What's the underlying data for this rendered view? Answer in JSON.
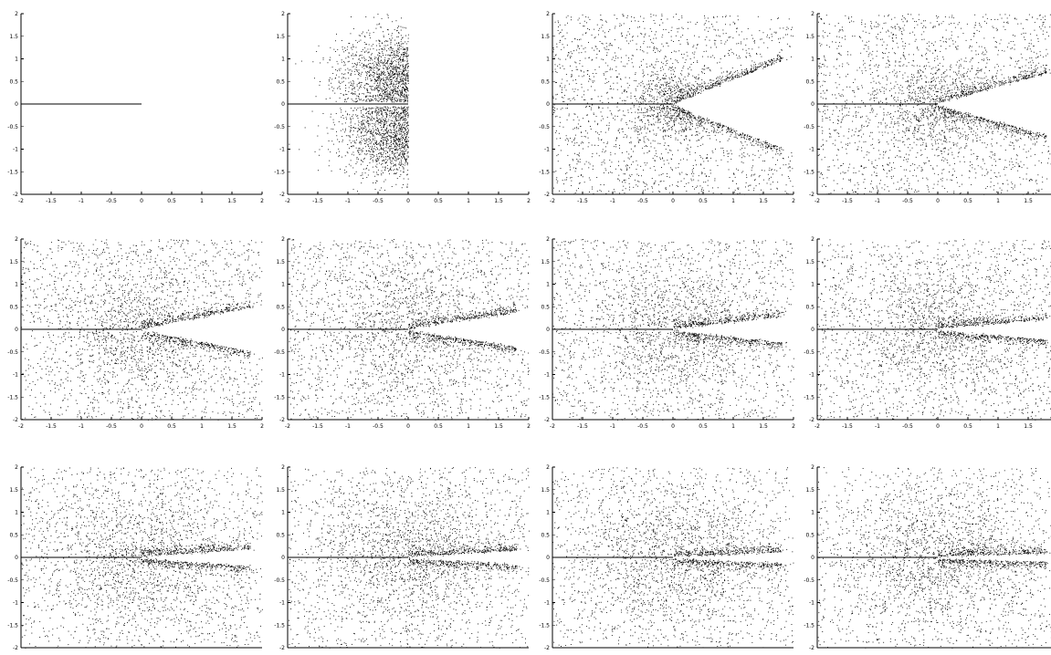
{
  "figure": {
    "grid_rows": 3,
    "grid_cols": 4,
    "point_color": "#000000",
    "background": "#ffffff"
  },
  "chart_data": [
    {
      "panel": 1,
      "type": "scatter",
      "pattern": "line",
      "spread": 0.0,
      "open_angle": 0,
      "center_density": 0.0,
      "xlim": [
        -2,
        2
      ],
      "ylim": [
        -2,
        2
      ],
      "xticks": [
        "-2",
        "-1.5",
        "-1",
        "-0.5",
        "0",
        "0.5",
        "1",
        "1.5",
        "2"
      ],
      "yticks": [
        "2",
        "1.5",
        "1",
        "0.5",
        "0",
        "-0.5",
        "-1",
        "-1.5",
        "-2"
      ]
    },
    {
      "panel": 2,
      "type": "scatter",
      "pattern": "split",
      "spread": 1.0,
      "open_angle": 0,
      "center_density": 0.3,
      "xlim": [
        -2,
        2
      ],
      "ylim": [
        -2,
        2
      ],
      "xticks": [
        "-2",
        "-1.5",
        "-1",
        "-0.5",
        "0",
        "0.5",
        "1",
        "1.5",
        "2"
      ],
      "yticks": [
        "2",
        "1.5",
        "1",
        "0.5",
        "0",
        "-0.5",
        "-1",
        "-1.5",
        "-2"
      ]
    },
    {
      "panel": 3,
      "type": "scatter",
      "pattern": "wedge",
      "spread": 0.7,
      "open_angle": 55,
      "center_density": 0.3,
      "xlim": [
        -2,
        2
      ],
      "ylim": [
        -2,
        2
      ],
      "xticks": [
        "-2",
        "-1.5",
        "-1",
        "-0.5",
        "0",
        "0.5",
        "1",
        "1.5",
        "2"
      ],
      "yticks": [
        "2",
        "1.5",
        "1",
        "0.5",
        "0",
        "-0.5",
        "-1",
        "-1.5",
        "-2"
      ]
    },
    {
      "panel": 4,
      "type": "scatter",
      "pattern": "wedge",
      "spread": 0.9,
      "open_angle": 40,
      "center_density": 0.3,
      "xlim": [
        -2,
        2
      ],
      "ylim": [
        -2,
        2
      ],
      "xticks": [
        "-2",
        "-1.5",
        "-1",
        "-0.5",
        "0",
        "0.5",
        "1",
        "1.5"
      ],
      "yticks": [
        "2",
        "1.5",
        "1",
        "0.5",
        "0",
        "-0.5",
        "-1",
        "-1.5",
        "-2"
      ]
    },
    {
      "panel": 5,
      "type": "scatter",
      "pattern": "wedge",
      "spread": 1.2,
      "open_angle": 28,
      "center_density": 0.35,
      "xlim": [
        -2,
        2
      ],
      "ylim": [
        -2,
        2
      ],
      "xticks": [
        "-2",
        "-1.5",
        "-1",
        "-0.5",
        "0",
        "0.5",
        "1",
        "1.5",
        "2"
      ],
      "yticks": [
        "2",
        "1.5",
        "1",
        "0.5",
        "0",
        "-0.5",
        "-1",
        "-1.5",
        "-2"
      ]
    },
    {
      "panel": 6,
      "type": "scatter",
      "pattern": "wedge",
      "spread": 1.3,
      "open_angle": 22,
      "center_density": 0.35,
      "xlim": [
        -2,
        2
      ],
      "ylim": [
        -2,
        2
      ],
      "xticks": [
        "-2",
        "-1.5",
        "-1",
        "-0.5",
        "0",
        "0.5",
        "1",
        "1.5",
        "2"
      ],
      "yticks": [
        "2",
        "1.5",
        "1",
        "0.5",
        "0",
        "-0.5",
        "-1",
        "-1.5",
        "-2"
      ]
    },
    {
      "panel": 7,
      "type": "scatter",
      "pattern": "wedge",
      "spread": 1.3,
      "open_angle": 16,
      "center_density": 0.4,
      "xlim": [
        -2,
        2
      ],
      "ylim": [
        -2,
        2
      ],
      "xticks": [
        "-2",
        "-1.5",
        "-1",
        "-0.5",
        "0",
        "0.5",
        "1",
        "1.5",
        "2"
      ],
      "yticks": [
        "2",
        "1.5",
        "1",
        "0.5",
        "0",
        "-0.5",
        "-1",
        "-1.5",
        "-2"
      ]
    },
    {
      "panel": 8,
      "type": "scatter",
      "pattern": "wedge",
      "spread": 1.4,
      "open_angle": 12,
      "center_density": 0.45,
      "xlim": [
        -2,
        2
      ],
      "ylim": [
        -2,
        2
      ],
      "xticks": [
        "-2",
        "-1.5",
        "-1",
        "-0.5",
        "0",
        "0.5",
        "1",
        "1.5"
      ],
      "yticks": [
        "2",
        "1.5",
        "1",
        "0.5",
        "0",
        "-0.5",
        "-1",
        "-1.5",
        "-2"
      ]
    },
    {
      "panel": 9,
      "type": "scatter",
      "pattern": "wedge",
      "spread": 1.5,
      "open_angle": 10,
      "center_density": 0.5,
      "xlim": [
        -2,
        2
      ],
      "ylim": [
        -2,
        2
      ],
      "xticks": [],
      "yticks": [
        "2",
        "1.5",
        "1",
        "0.5",
        "0",
        "-0.5",
        "-1",
        "-1.5",
        "-2"
      ]
    },
    {
      "panel": 10,
      "type": "scatter",
      "pattern": "wedge",
      "spread": 1.5,
      "open_angle": 8,
      "center_density": 0.55,
      "xlim": [
        -2,
        2
      ],
      "ylim": [
        -2,
        2
      ],
      "xticks": [],
      "yticks": [
        "2",
        "1.5",
        "1",
        "0.5",
        "0",
        "-0.5",
        "-1",
        "-1.5",
        "-2"
      ]
    },
    {
      "panel": 11,
      "type": "scatter",
      "pattern": "wedge",
      "spread": 1.6,
      "open_angle": 6,
      "center_density": 0.6,
      "xlim": [
        -2,
        2
      ],
      "ylim": [
        -2,
        2
      ],
      "xticks": [],
      "yticks": [
        "2",
        "1.5",
        "1",
        "0.5",
        "0",
        "-0.5",
        "-1",
        "-1.5",
        "-2"
      ]
    },
    {
      "panel": 12,
      "type": "scatter",
      "pattern": "wedge",
      "spread": 1.7,
      "open_angle": 4,
      "center_density": 0.7,
      "xlim": [
        -2,
        2
      ],
      "ylim": [
        -2,
        2
      ],
      "xticks": [],
      "yticks": [
        "2",
        "1.5",
        "1",
        "0.5",
        "0",
        "-0.5",
        "-1",
        "-1.5",
        "-2"
      ]
    }
  ]
}
